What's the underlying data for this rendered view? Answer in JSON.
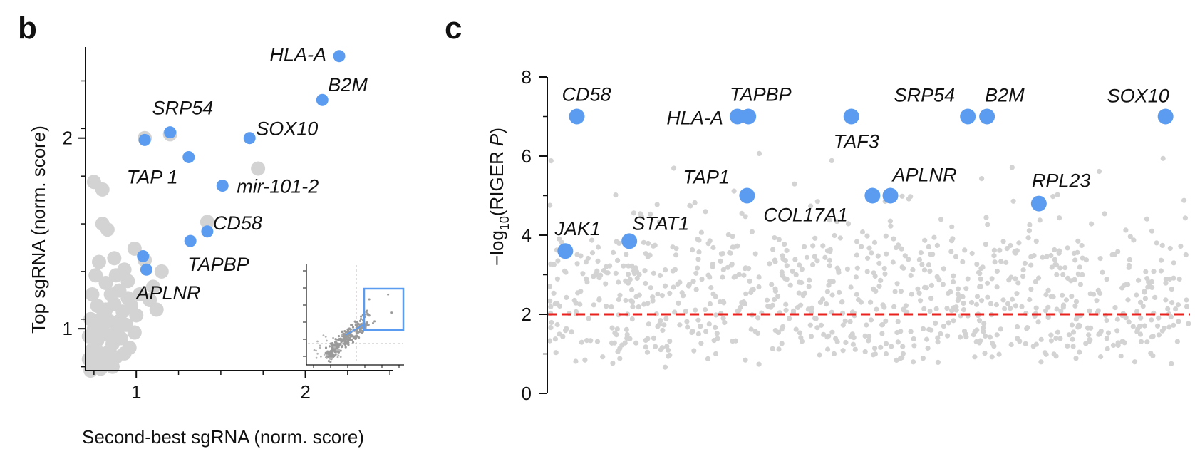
{
  "colors": {
    "highlight": "#5b9cf0",
    "background_points": "#d3d3d3",
    "threshold": "#e8231f",
    "axis": "#111111",
    "inset_box": "#5b9cf0"
  },
  "panels": [
    {
      "letter": "b"
    },
    {
      "letter": "c"
    }
  ],
  "chart_data": [
    {
      "panel": "b",
      "type": "scatter",
      "xlabel": "Second-best sgRNA (norm. score)",
      "ylabel": "Top sgRNA (norm. score)",
      "xlim": [
        0.7,
        2.52
      ],
      "ylim": [
        0.78,
        2.47
      ],
      "xticks": [
        1,
        2
      ],
      "yticks": [
        1,
        2
      ],
      "highlighted": [
        {
          "label": "HLA-A",
          "x": 2.2,
          "y": 2.43
        },
        {
          "label": "B2M",
          "x": 2.1,
          "y": 2.2
        },
        {
          "label": "SOX10",
          "x": 1.67,
          "y": 2.0
        },
        {
          "label": "SRP54",
          "x": 1.2,
          "y": 2.03
        },
        {
          "label": "",
          "x": 1.05,
          "y": 1.99
        },
        {
          "label": "TAP 1",
          "x": 1.31,
          "y": 1.9
        },
        {
          "label": "mir-101-2",
          "x": 1.51,
          "y": 1.75
        },
        {
          "label": "CD58",
          "x": 1.42,
          "y": 1.51
        },
        {
          "label": "TAPBP",
          "x": 1.32,
          "y": 1.46
        },
        {
          "label": "",
          "x": 1.04,
          "y": 1.38
        },
        {
          "label": "APLNR",
          "x": 1.06,
          "y": 1.31
        }
      ],
      "background": [
        [
          0.75,
          1.77
        ],
        [
          0.8,
          1.73
        ],
        [
          1.72,
          1.84
        ],
        [
          1.2,
          2.02
        ],
        [
          0.8,
          1.55
        ],
        [
          0.83,
          1.52
        ],
        [
          1.05,
          2.0
        ],
        [
          1.42,
          1.56
        ],
        [
          0.99,
          1.42
        ],
        [
          1.05,
          1.36
        ],
        [
          1.15,
          1.3
        ],
        [
          0.87,
          1.37
        ],
        [
          0.93,
          1.31
        ],
        [
          0.78,
          1.35
        ],
        [
          0.82,
          1.24
        ],
        [
          0.9,
          1.2
        ],
        [
          0.95,
          1.25
        ],
        [
          1.02,
          1.18
        ],
        [
          1.08,
          1.15
        ],
        [
          0.74,
          1.18
        ],
        [
          0.77,
          1.12
        ],
        [
          0.82,
          1.1
        ],
        [
          0.87,
          1.13
        ],
        [
          0.92,
          1.09
        ],
        [
          0.97,
          1.12
        ],
        [
          1.0,
          1.07
        ],
        [
          0.73,
          1.05
        ],
        [
          0.78,
          1.02
        ],
        [
          0.84,
          1.04
        ],
        [
          0.89,
          1.0
        ],
        [
          0.94,
          1.02
        ],
        [
          0.99,
          0.98
        ],
        [
          0.72,
          0.96
        ],
        [
          0.77,
          0.94
        ],
        [
          0.82,
          0.97
        ],
        [
          0.86,
          0.92
        ],
        [
          0.91,
          0.95
        ],
        [
          0.96,
          0.9
        ],
        [
          0.74,
          0.89
        ],
        [
          0.79,
          0.87
        ],
        [
          0.84,
          0.88
        ],
        [
          0.88,
          0.85
        ],
        [
          0.93,
          0.87
        ],
        [
          0.72,
          0.84
        ],
        [
          0.76,
          0.82
        ],
        [
          0.81,
          0.83
        ],
        [
          0.86,
          0.8
        ],
        [
          0.74,
          0.8
        ],
        [
          0.79,
          0.79
        ],
        [
          0.73,
          0.78
        ],
        [
          0.88,
          1.28
        ],
        [
          1.1,
          1.22
        ],
        [
          0.76,
          1.28
        ],
        [
          0.85,
          1.18
        ],
        [
          1.12,
          1.1
        ],
        [
          0.95,
          1.16
        ],
        [
          0.8,
          1.06
        ],
        [
          0.9,
          1.04
        ],
        [
          0.75,
          1.0
        ],
        [
          0.85,
          0.96
        ]
      ]
    },
    {
      "panel": "c",
      "type": "scatter",
      "ylabel": "−log10(RIGER P)",
      "ylim": [
        0,
        8
      ],
      "yticks": [
        0,
        2,
        4,
        6,
        8
      ],
      "xlim": [
        0,
        100
      ],
      "threshold": 2,
      "highlighted": [
        {
          "label": "CD58",
          "x": 4.4,
          "y": 7.0
        },
        {
          "label": "HLA-A",
          "x": 29.5,
          "y": 7.0
        },
        {
          "label": "TAPBP",
          "x": 31.2,
          "y": 7.0
        },
        {
          "label": "TAF3",
          "x": 47.3,
          "y": 7.0
        },
        {
          "label": "SRP54",
          "x": 65.5,
          "y": 7.0
        },
        {
          "label": "B2M",
          "x": 68.5,
          "y": 7.0
        },
        {
          "label": "SOX10",
          "x": 96.4,
          "y": 7.0
        },
        {
          "label": "TAP1",
          "x": 31.0,
          "y": 5.0
        },
        {
          "label": "COL17A1",
          "x": 50.6,
          "y": 5.0
        },
        {
          "label": "APLNR",
          "x": 53.4,
          "y": 5.0
        },
        {
          "label": "RPL23",
          "x": 76.6,
          "y": 4.8
        },
        {
          "label": "JAK1",
          "x": 2.6,
          "y": 3.6
        },
        {
          "label": "STAT1",
          "x": 12.6,
          "y": 3.85
        }
      ],
      "background_count": 900
    }
  ]
}
